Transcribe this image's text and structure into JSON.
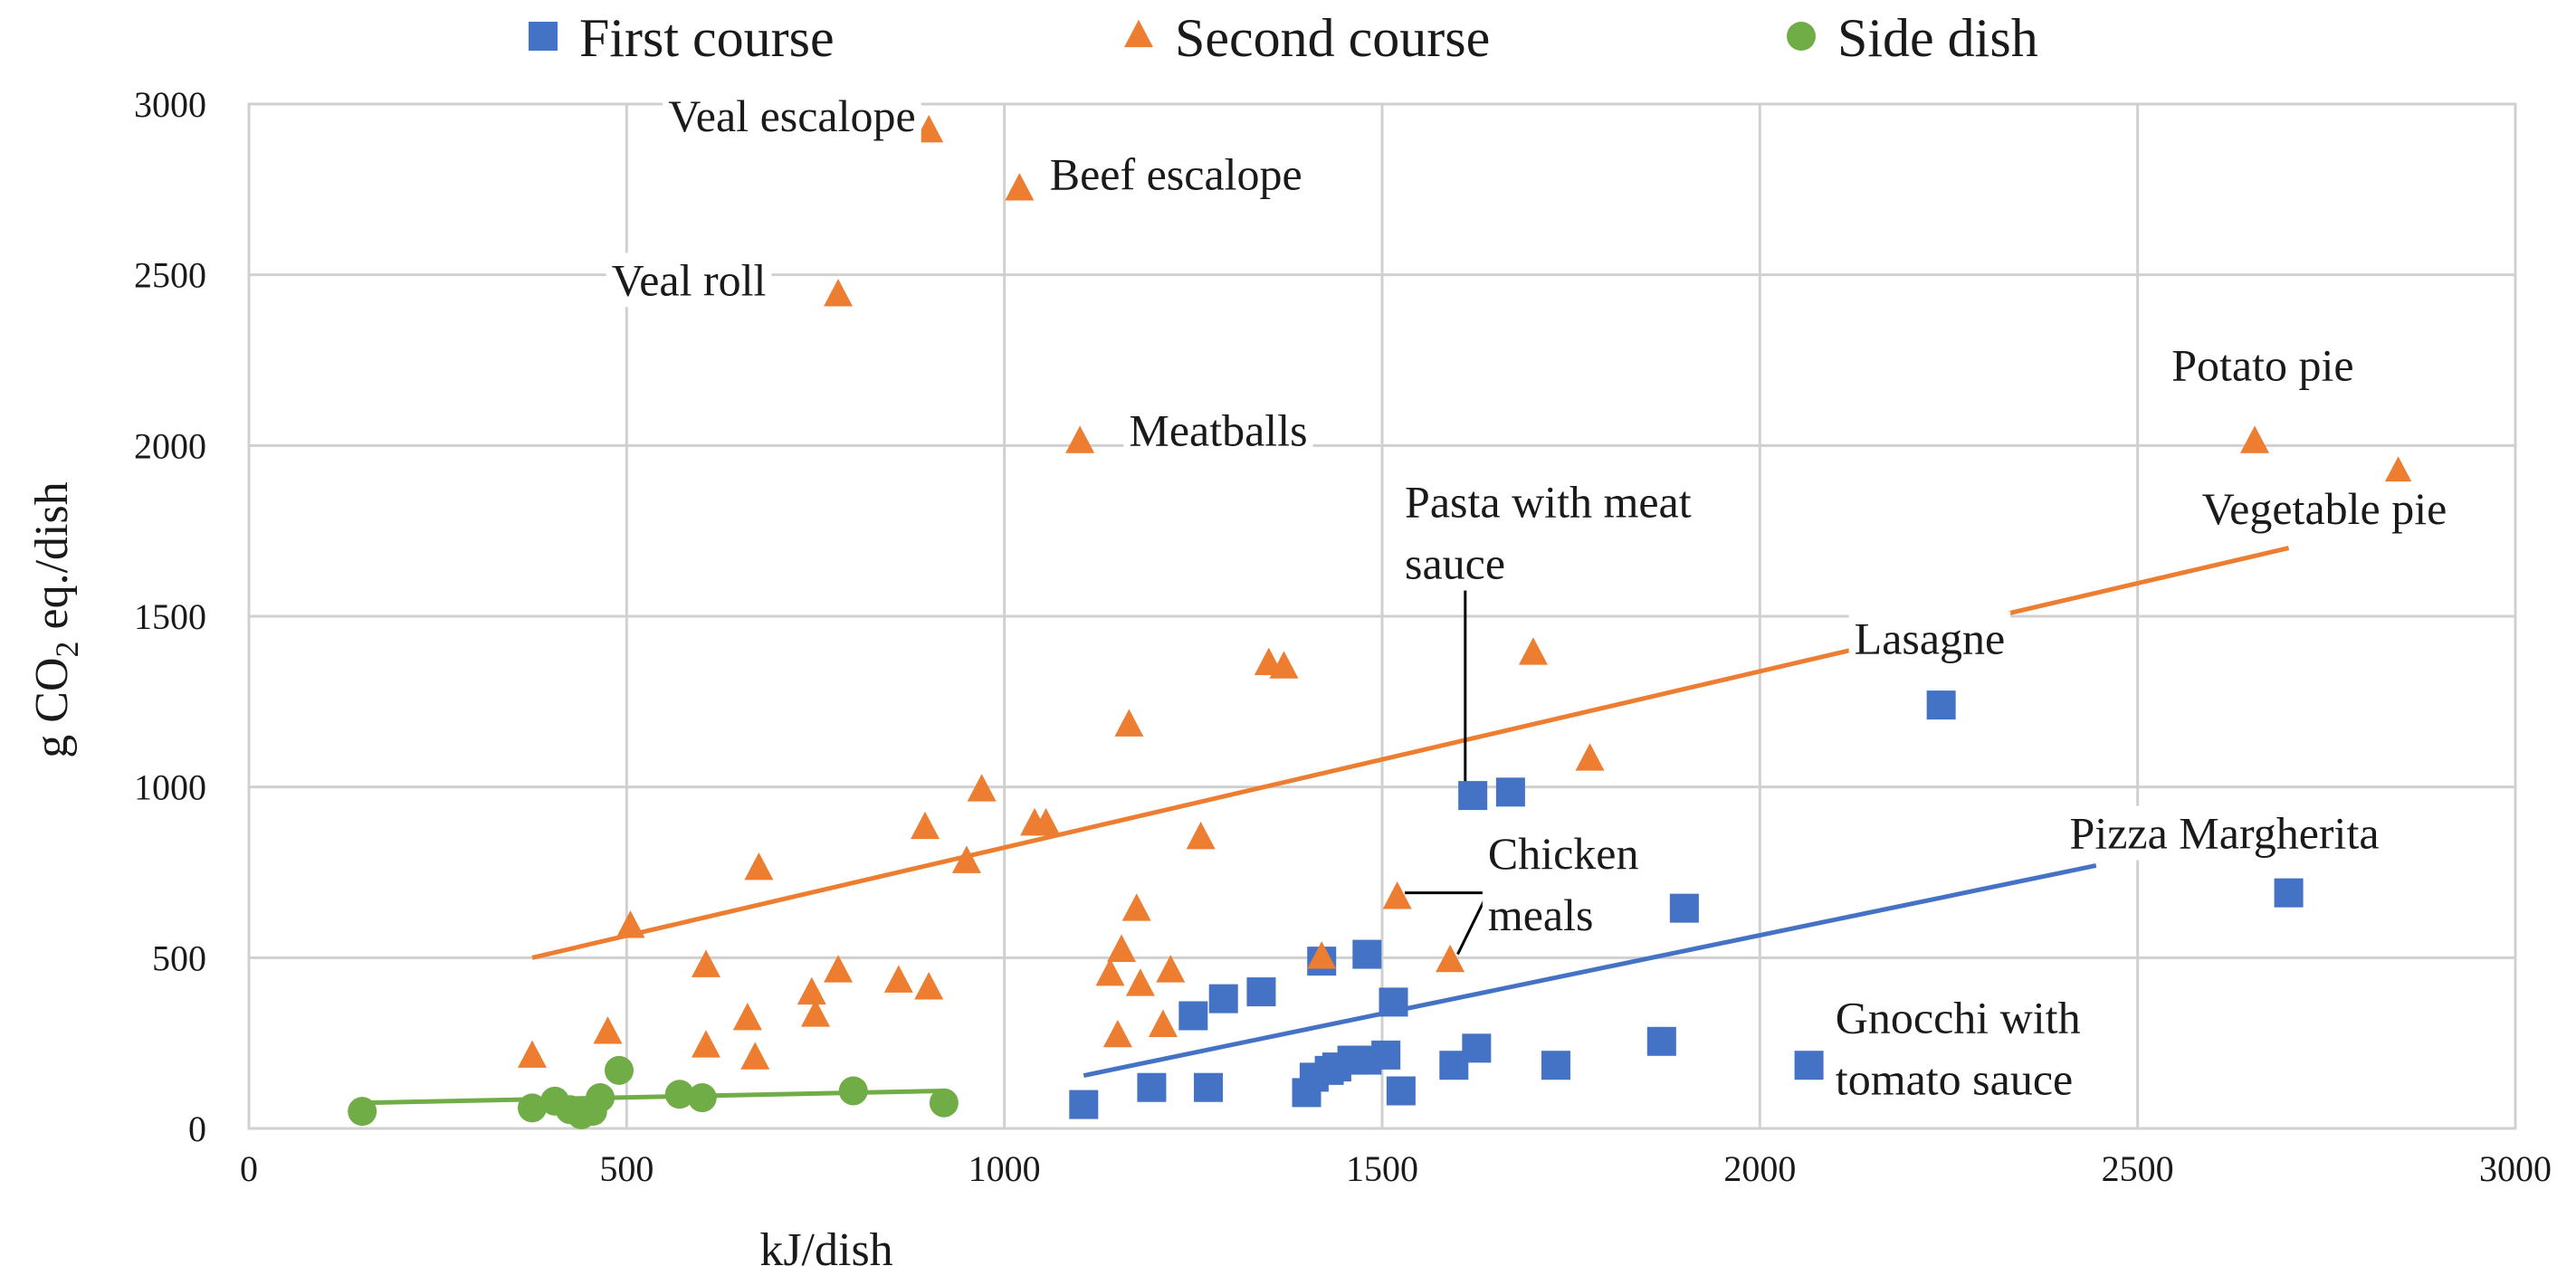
{
  "colors": {
    "first_course": "#4472c4",
    "second_course": "#ed7d31",
    "side_dish": "#70ad47",
    "grid": "#d0d0d0",
    "text": "#1a1a1a",
    "leader": "#000000"
  },
  "chart_data": {
    "type": "scatter",
    "title": "",
    "xlabel": "kJ/dish",
    "ylabel_parts": [
      "g CO",
      "2",
      " eq./dish"
    ],
    "xlim": [
      0,
      3000
    ],
    "ylim": [
      0,
      3000
    ],
    "xticks": [
      0,
      500,
      1000,
      1500,
      2000,
      2500,
      3000
    ],
    "yticks": [
      0,
      500,
      1000,
      1500,
      2000,
      2500,
      3000
    ],
    "grid": true,
    "legend_position": "top-center",
    "series": [
      {
        "name": "First course",
        "marker": "square",
        "color": "#4472c4",
        "points": [
          [
            1105,
            70
          ],
          [
            1195,
            120
          ],
          [
            1270,
            120
          ],
          [
            1250,
            330
          ],
          [
            1290,
            380
          ],
          [
            1340,
            400
          ],
          [
            1400,
            105
          ],
          [
            1410,
            150
          ],
          [
            1430,
            170
          ],
          [
            1440,
            180
          ],
          [
            1460,
            200
          ],
          [
            1480,
            200
          ],
          [
            1505,
            215
          ],
          [
            1515,
            370
          ],
          [
            1525,
            110
          ],
          [
            1480,
            510
          ],
          [
            1420,
            490
          ],
          [
            1595,
            185
          ],
          [
            1625,
            235
          ],
          [
            1620,
            975
          ],
          [
            1670,
            985
          ],
          [
            1730,
            185
          ],
          [
            1870,
            255
          ],
          [
            1900,
            645
          ],
          [
            2065,
            185
          ],
          [
            2240,
            1240
          ],
          [
            2700,
            690
          ]
        ],
        "trendline": [
          [
            1105,
            155
          ],
          [
            2445,
            770
          ]
        ]
      },
      {
        "name": "Second course",
        "marker": "triangle",
        "color": "#ed7d31",
        "points": [
          [
            375,
            210
          ],
          [
            475,
            280
          ],
          [
            505,
            590
          ],
          [
            605,
            475
          ],
          [
            605,
            240
          ],
          [
            660,
            320
          ],
          [
            670,
            205
          ],
          [
            675,
            760
          ],
          [
            745,
            395
          ],
          [
            750,
            330
          ],
          [
            780,
            460
          ],
          [
            780,
            2440
          ],
          [
            860,
            430
          ],
          [
            895,
            880
          ],
          [
            900,
            410
          ],
          [
            900,
            2920
          ],
          [
            950,
            780
          ],
          [
            970,
            990
          ],
          [
            1020,
            2750
          ],
          [
            1040,
            890
          ],
          [
            1055,
            890
          ],
          [
            1100,
            2010
          ],
          [
            1140,
            450
          ],
          [
            1150,
            270
          ],
          [
            1155,
            520
          ],
          [
            1165,
            1180
          ],
          [
            1175,
            640
          ],
          [
            1180,
            420
          ],
          [
            1210,
            300
          ],
          [
            1220,
            460
          ],
          [
            1260,
            850
          ],
          [
            1350,
            1360
          ],
          [
            1370,
            1350
          ],
          [
            1420,
            500
          ],
          [
            1520,
            675
          ],
          [
            1590,
            490
          ],
          [
            1700,
            1390
          ],
          [
            1775,
            1080
          ],
          [
            2655,
            2010
          ],
          [
            2845,
            1920
          ]
        ],
        "trendline": [
          [
            375,
            500
          ],
          [
            2700,
            1700
          ]
        ]
      },
      {
        "name": "Side dish",
        "marker": "circle",
        "color": "#70ad47",
        "points": [
          [
            150,
            50
          ],
          [
            375,
            60
          ],
          [
            405,
            80
          ],
          [
            425,
            55
          ],
          [
            440,
            40
          ],
          [
            455,
            50
          ],
          [
            465,
            90
          ],
          [
            490,
            170
          ],
          [
            570,
            100
          ],
          [
            600,
            90
          ],
          [
            800,
            110
          ],
          [
            920,
            75
          ]
        ],
        "trendline": [
          [
            150,
            75
          ],
          [
            920,
            110
          ]
        ]
      }
    ],
    "annotations": [
      {
        "lines": [
          "Veal escalope"
        ],
        "x": 555,
        "y": 2920,
        "align": "start"
      },
      {
        "lines": [
          "Beef escalope"
        ],
        "x": 1060,
        "y": 2750,
        "align": "start"
      },
      {
        "lines": [
          "Veal roll"
        ],
        "x": 480,
        "y": 2440,
        "align": "start"
      },
      {
        "lines": [
          "Meatballs"
        ],
        "x": 1165,
        "y": 2000,
        "align": "start"
      },
      {
        "lines": [
          "Potato pie"
        ],
        "x": 2545,
        "y": 2190,
        "align": "start"
      },
      {
        "lines": [
          "Vegetable pie"
        ],
        "x": 2585,
        "y": 1770,
        "align": "start"
      },
      {
        "lines": [
          "Pasta with meat",
          "sauce"
        ],
        "x": 1530,
        "y": 1790,
        "align": "start"
      },
      {
        "lines": [
          "Lasagne"
        ],
        "x": 2125,
        "y": 1390,
        "align": "start"
      },
      {
        "lines": [
          "Pizza Margherita"
        ],
        "x": 2410,
        "y": 820,
        "align": "start"
      },
      {
        "lines": [
          "Chicken",
          "meals"
        ],
        "x": 1640,
        "y": 760,
        "align": "start"
      },
      {
        "lines": [
          "Gnocchi with",
          "tomato sauce"
        ],
        "x": 2100,
        "y": 280,
        "align": "start"
      }
    ],
    "leader_lines": [
      [
        [
          1610,
          1640
        ],
        [
          1610,
          1000
        ]
      ],
      [
        [
          1530,
          690
        ],
        [
          1640,
          690
        ]
      ],
      [
        [
          1600,
          510
        ],
        [
          1640,
          690
        ]
      ]
    ]
  }
}
